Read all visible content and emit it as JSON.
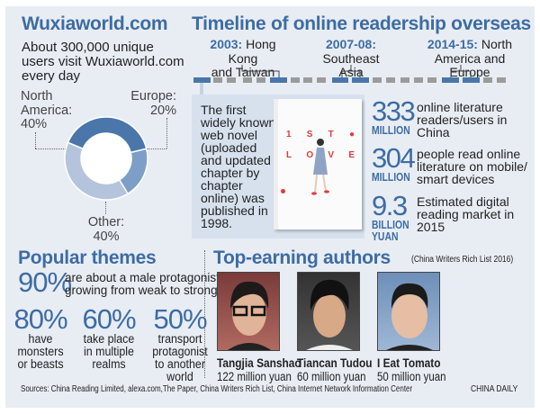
{
  "wuxia": {
    "title": "Wuxiaworld.com",
    "subtitle": [
      "About 300,000 unique",
      "users visit Wuxiaworld.com",
      "every day"
    ],
    "labels": {
      "north_america": [
        "North",
        "America:",
        "40%"
      ],
      "europe": [
        "Europe:",
        "20%"
      ],
      "other": [
        "Other:",
        "40%"
      ]
    }
  },
  "chart_data": {
    "type": "pie",
    "donut": true,
    "categories": [
      "North America",
      "Europe",
      "Other"
    ],
    "values": [
      40,
      20,
      40
    ],
    "colors": [
      "#4a76aa",
      "#7d9fc7",
      "#b3c4dc"
    ]
  },
  "timeline": {
    "title": "Timeline of online readership overseas",
    "events": [
      {
        "year": "2003:",
        "place": [
          "Hong Kong",
          "and Taiwan"
        ]
      },
      {
        "year": "2007-08:",
        "place": [
          "Southeast Asia"
        ]
      },
      {
        "year": "2014-15:",
        "place": [
          "North",
          "America and Europe"
        ]
      }
    ],
    "colors": {
      "highlight": "#4a76aa",
      "base": "#9b9b9b"
    },
    "first_novel": [
      "The first",
      "widely known",
      "web novel",
      "(uploaded",
      "and updated",
      "chapter by",
      "chapter",
      "online) was",
      "published in",
      "1998."
    ],
    "book_cover": {
      "line1": [
        "1",
        "S",
        "T",
        "●"
      ],
      "line2": [
        "L",
        "O",
        "V",
        "E"
      ]
    }
  },
  "stats": [
    {
      "number": "333",
      "unit": [
        "MILLION"
      ],
      "text": [
        "online literature",
        "readers/users in",
        "China"
      ]
    },
    {
      "number": "304",
      "unit": [
        "MILLION"
      ],
      "text": [
        "people read online",
        "literature on mobile/",
        "smart devices"
      ]
    },
    {
      "number": "9.3",
      "unit": [
        "BILLION",
        "YUAN"
      ],
      "text": [
        "Estimated digital",
        "reading market in",
        "2015"
      ]
    }
  ],
  "themes": {
    "title": "Popular themes",
    "main": {
      "pct": "90%",
      "text": [
        "are about a male protagonist",
        "growing from weak to strong"
      ]
    },
    "items": [
      {
        "pct": "80%",
        "text": [
          "have",
          "monsters",
          "or beasts"
        ]
      },
      {
        "pct": "60%",
        "text": [
          "take place",
          "in multiple",
          "realms"
        ]
      },
      {
        "pct": "50%",
        "text": [
          "transport",
          "protagonist",
          "to another",
          "world"
        ]
      }
    ]
  },
  "authors": {
    "title": "Top-earning authors",
    "note": "(China Writers Rich List 2016)",
    "list": [
      {
        "name": "Tangjia Sanshao",
        "earnings": "122 million yuan"
      },
      {
        "name": "Tiancan Tudou",
        "earnings": "60 million yuan"
      },
      {
        "name": "I Eat Tomato",
        "earnings": "50 million yuan"
      }
    ]
  },
  "footer": {
    "sources": "Sources: China Reading Limited, alexa.com,The Paper, China Writers Rich List, China Internet Network Information Center",
    "credit": "CHINA DAILY"
  }
}
